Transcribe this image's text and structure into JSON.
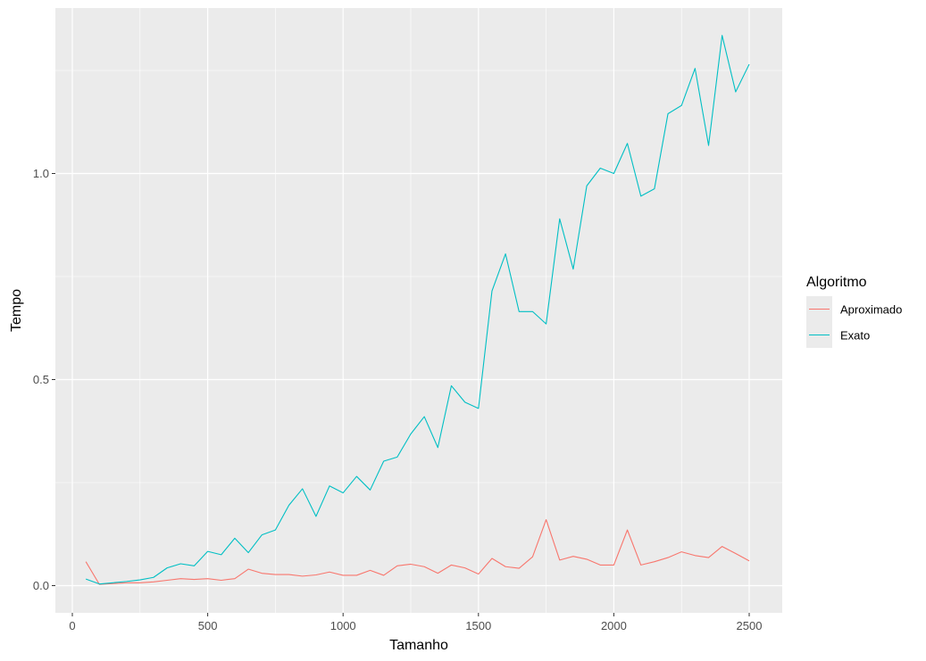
{
  "chart_data": {
    "type": "line",
    "xlabel": "Tamanho",
    "ylabel": "Tempo",
    "xlim": [
      0,
      2500
    ],
    "ylim": [
      -0.06,
      1.4
    ],
    "x_ticks": [
      0,
      500,
      1000,
      1500,
      2000,
      2500
    ],
    "x_tick_labels": [
      "0",
      "500",
      "1000",
      "1500",
      "2000",
      "2500"
    ],
    "y_ticks": [
      0.0,
      0.5,
      1.0
    ],
    "y_tick_labels": [
      "0.0",
      "0.5",
      "1.0"
    ],
    "grid": true,
    "panel_background": "#ebebeb",
    "legend": {
      "title": "Algoritmo",
      "placement": "right"
    },
    "x": [
      50,
      100,
      150,
      200,
      250,
      300,
      350,
      400,
      450,
      500,
      550,
      600,
      650,
      700,
      750,
      800,
      850,
      900,
      950,
      1000,
      1050,
      1100,
      1150,
      1200,
      1250,
      1300,
      1350,
      1400,
      1450,
      1500,
      1550,
      1600,
      1650,
      1700,
      1750,
      1800,
      1850,
      1900,
      1950,
      2000,
      2050,
      2100,
      2150,
      2200,
      2250,
      2300,
      2350,
      2400,
      2450,
      2500
    ],
    "series": [
      {
        "name": "Aproximado",
        "color": "#f8766d",
        "values": [
          0.058,
          0.003,
          0.005,
          0.007,
          0.007,
          0.009,
          0.013,
          0.017,
          0.015,
          0.017,
          0.013,
          0.017,
          0.04,
          0.03,
          0.027,
          0.027,
          0.023,
          0.026,
          0.033,
          0.025,
          0.025,
          0.037,
          0.025,
          0.048,
          0.052,
          0.046,
          0.03,
          0.05,
          0.043,
          0.028,
          0.066,
          0.046,
          0.042,
          0.07,
          0.16,
          0.062,
          0.071,
          0.064,
          0.05,
          0.05,
          0.135,
          0.05,
          0.058,
          0.068,
          0.082,
          0.073,
          0.068,
          0.095,
          0.078,
          0.06
        ]
      },
      {
        "name": "Exato",
        "color": "#00bfc4",
        "values": [
          0.016,
          0.004,
          0.007,
          0.01,
          0.014,
          0.02,
          0.043,
          0.053,
          0.048,
          0.083,
          0.075,
          0.115,
          0.08,
          0.123,
          0.135,
          0.195,
          0.235,
          0.168,
          0.242,
          0.225,
          0.265,
          0.232,
          0.302,
          0.312,
          0.368,
          0.41,
          0.335,
          0.485,
          0.445,
          0.43,
          0.715,
          0.805,
          0.665,
          0.665,
          0.635,
          0.89,
          0.768,
          0.97,
          1.013,
          1.0,
          1.073,
          0.945,
          0.963,
          1.145,
          1.165,
          1.255,
          1.068,
          1.335,
          1.198,
          1.265
        ]
      }
    ]
  }
}
